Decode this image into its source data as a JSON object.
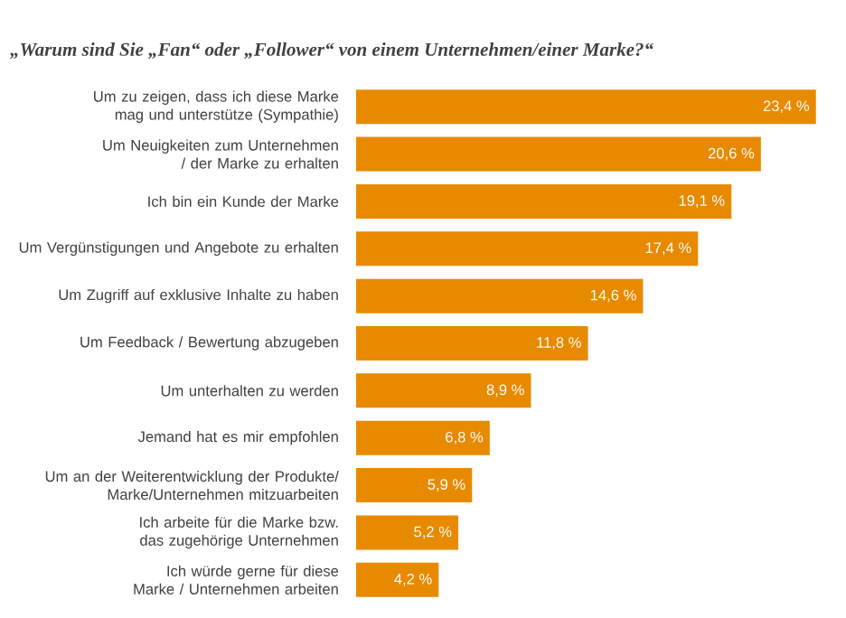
{
  "chart_data": {
    "type": "bar",
    "orientation": "horizontal",
    "title": "„Warum sind Sie „Fan“ oder „Follower“ von einem Unternehmen/einer Marke?“",
    "categories": [
      "Um zu zeigen, dass ich diese Marke mag und unterstütze (Sympathie)",
      "Um Neuigkeiten zum Unternehmen / der Marke zu erhalten",
      "Ich bin ein Kunde der Marke",
      "Um Vergünstigungen und Angebote zu erhalten",
      "Um Zugriff auf exklusive Inhalte zu haben",
      "Um Feedback / Bewertung abzugeben",
      "Um unterhalten zu werden",
      "Jemand hat es mir empfohlen",
      "Um an der Weiterentwicklung der Produkte/ Marke/Unternehmen mitzuarbeiten",
      "Ich arbeite für die Marke bzw. das zugehörige Unternehmen",
      "Ich würde gerne für diese Marke / Unternehmen arbeiten"
    ],
    "values": [
      23.4,
      20.6,
      19.1,
      17.4,
      14.6,
      11.8,
      8.9,
      6.8,
      5.9,
      5.2,
      4.2
    ],
    "value_labels": [
      "23,4 %",
      "20,6 %",
      "19,1 %",
      "17,4 %",
      "14,6 %",
      "11,8 %",
      "8,9 %",
      "6,8 %",
      "5,9 %",
      "5,2 %",
      "4,2 %"
    ],
    "color": "#e88a00"
  }
}
